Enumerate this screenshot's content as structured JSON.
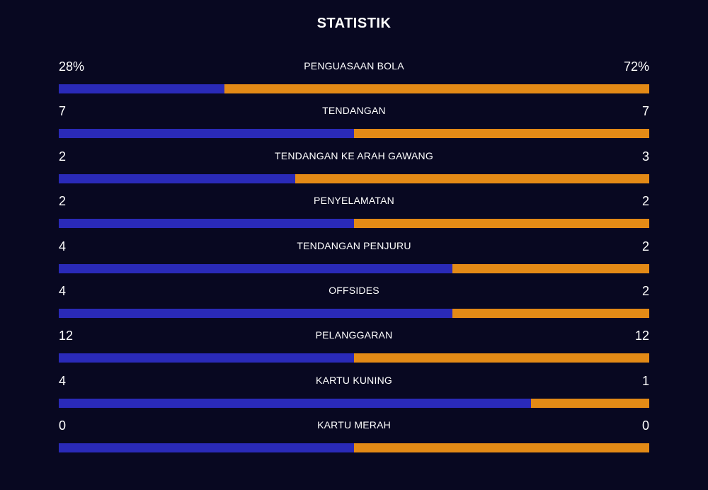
{
  "title": "STATISTIK",
  "colors": {
    "home": "#2a2ab8",
    "away": "#e38a16",
    "background": "#080821"
  },
  "stats": [
    {
      "label": "PENGUASAAN BOLA",
      "home": "28%",
      "away": "72%",
      "home_share": 0.28
    },
    {
      "label": "TENDANGAN",
      "home": "7",
      "away": "7",
      "home_share": 0.5
    },
    {
      "label": "TENDANGAN KE ARAH GAWANG",
      "home": "2",
      "away": "3",
      "home_share": 0.4
    },
    {
      "label": "PENYELAMATAN",
      "home": "2",
      "away": "2",
      "home_share": 0.5
    },
    {
      "label": "TENDANGAN PENJURU",
      "home": "4",
      "away": "2",
      "home_share": 0.667
    },
    {
      "label": "OFFSIDES",
      "home": "4",
      "away": "2",
      "home_share": 0.667
    },
    {
      "label": "PELANGGARAN",
      "home": "12",
      "away": "12",
      "home_share": 0.5
    },
    {
      "label": "KARTU KUNING",
      "home": "4",
      "away": "1",
      "home_share": 0.8
    },
    {
      "label": "KARTU MERAH",
      "home": "0",
      "away": "0",
      "home_share": 0.5
    }
  ]
}
